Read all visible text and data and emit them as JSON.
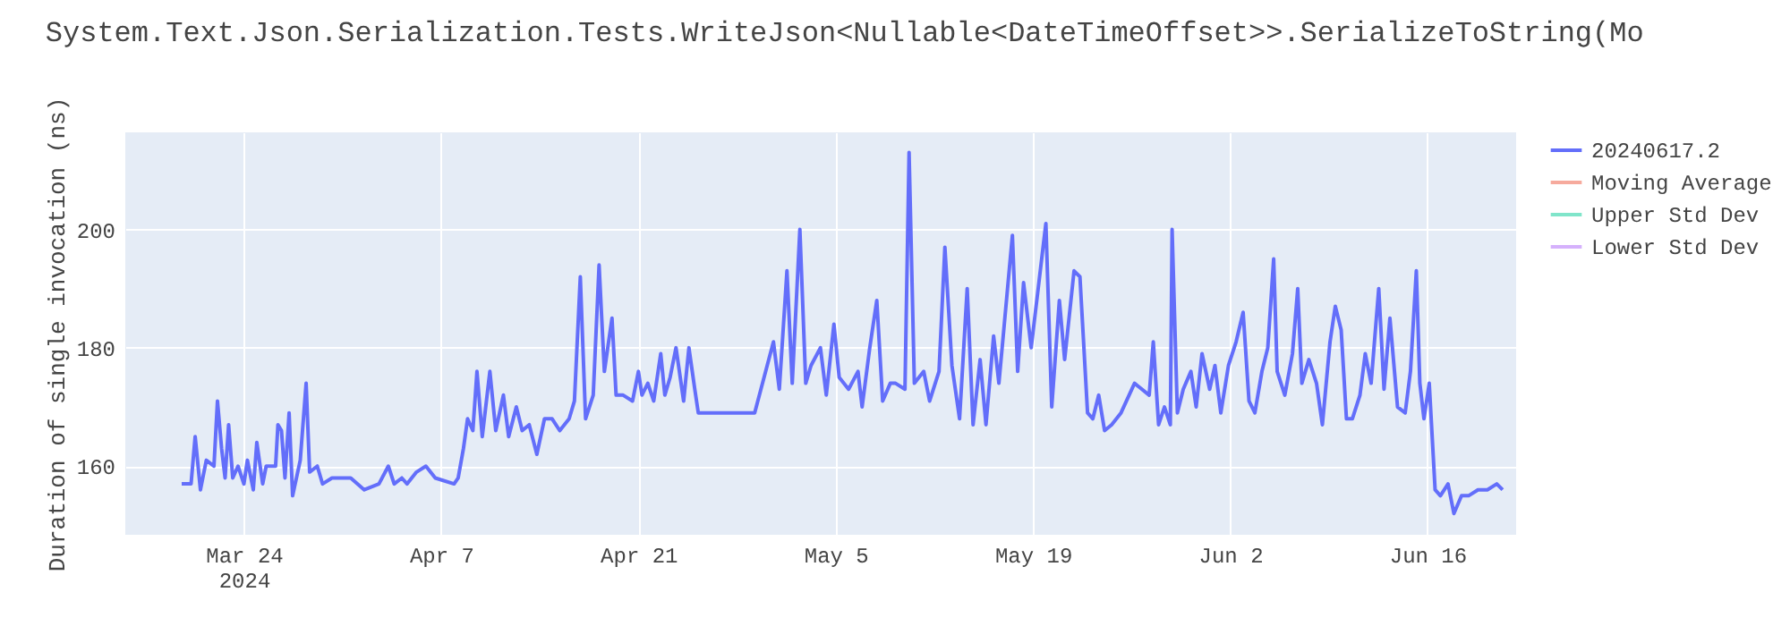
{
  "chart_data": {
    "type": "line",
    "title": "System.Text.Json.Serialization.Tests.WriteJson<Nullable<DateTimeOffset>>.SerializeToString(Mo",
    "ylabel": "Duration of single invocation (ns)",
    "xlim": [
      "2024-03-15T14:00",
      "2024-06-22T07:00"
    ],
    "xticks": [
      {
        "value": "2024-03-24",
        "label": "Mar 24\n2024"
      },
      {
        "value": "2024-04-07",
        "label": "Apr 7"
      },
      {
        "value": "2024-04-21",
        "label": "Apr 21"
      },
      {
        "value": "2024-05-05",
        "label": "May 5"
      },
      {
        "value": "2024-05-19",
        "label": "May 19"
      },
      {
        "value": "2024-06-02",
        "label": "Jun 2"
      },
      {
        "value": "2024-06-16",
        "label": "Jun 16"
      }
    ],
    "ylim": [
      148.4,
      216.4
    ],
    "yticks": [
      160,
      180,
      200
    ],
    "grid": true,
    "legend": "top right",
    "line_style": "solid",
    "series": [
      {
        "name": "20240617.2",
        "color": "#636efa",
        "x": [
          "2024-03-19T14:00",
          "2024-03-20T06:00",
          "2024-03-20T13:00",
          "2024-03-20T22:00",
          "2024-03-21T08:00",
          "2024-03-21T21:00",
          "2024-03-22T03:00",
          "2024-03-22T10:00",
          "2024-03-22T16:00",
          "2024-03-22T22:00",
          "2024-03-23T05:00",
          "2024-03-23T14:00",
          "2024-03-24T00:00",
          "2024-03-24T06:00",
          "2024-03-24T16:00",
          "2024-03-24T22:00",
          "2024-03-25T08:00",
          "2024-03-25T14:00",
          "2024-03-26T06:00",
          "2024-03-26T10:00",
          "2024-03-26T16:00",
          "2024-03-26T22:00",
          "2024-03-27T05:00",
          "2024-03-27T11:00",
          "2024-03-28T00:00",
          "2024-03-28T10:00",
          "2024-03-28T16:00",
          "2024-03-29T05:00",
          "2024-03-29T14:00",
          "2024-03-30T06:00",
          "2024-03-31T14:00",
          "2024-04-01T13:00",
          "2024-04-02T14:00",
          "2024-04-03T06:00",
          "2024-04-03T16:00",
          "2024-04-04T05:00",
          "2024-04-04T14:00",
          "2024-04-05T06:00",
          "2024-04-05T22:00",
          "2024-04-06T14:00",
          "2024-04-07T22:00",
          "2024-04-08T05:00",
          "2024-04-08T14:00",
          "2024-04-08T21:00",
          "2024-04-09T06:00",
          "2024-04-09T13:00",
          "2024-04-09T22:00",
          "2024-04-10T11:00",
          "2024-04-10T21:00",
          "2024-04-11T10:00",
          "2024-04-11T19:00",
          "2024-04-12T08:00",
          "2024-04-12T18:00",
          "2024-04-13T06:00",
          "2024-04-13T19:00",
          "2024-04-14T08:00",
          "2024-04-14T21:00",
          "2024-04-15T10:00",
          "2024-04-16T02:00",
          "2024-04-16T11:00",
          "2024-04-16T21:00",
          "2024-04-17T06:00",
          "2024-04-17T19:00",
          "2024-04-18T05:00",
          "2024-04-18T14:00",
          "2024-04-19T03:00",
          "2024-04-19T10:00",
          "2024-04-19T22:00",
          "2024-04-20T14:00",
          "2024-04-21T00:00",
          "2024-04-21T06:00",
          "2024-04-21T16:00",
          "2024-04-22T02:00",
          "2024-04-22T14:00",
          "2024-04-22T21:00",
          "2024-04-23T06:00",
          "2024-04-23T16:00",
          "2024-04-24T05:00",
          "2024-04-24T14:00",
          "2024-04-25T00:00",
          "2024-04-25T06:00",
          "2024-04-25T13:00",
          "2024-04-29T06:00",
          "2024-04-30T14:00",
          "2024-05-01T00:00",
          "2024-05-01T13:00",
          "2024-05-01T22:00",
          "2024-05-02T11:00",
          "2024-05-02T21:00",
          "2024-05-03T06:00",
          "2024-05-03T22:00",
          "2024-05-04T08:00",
          "2024-05-04T21:00",
          "2024-05-05T06:00",
          "2024-05-05T22:00",
          "2024-05-06T14:00",
          "2024-05-06T21:00",
          "2024-05-07T10:00",
          "2024-05-07T22:00",
          "2024-05-08T08:00",
          "2024-05-08T21:00",
          "2024-05-09T06:00",
          "2024-05-09T22:00",
          "2024-05-10T05:00",
          "2024-05-10T14:00",
          "2024-05-11T06:00",
          "2024-05-11T16:00",
          "2024-05-12T08:00",
          "2024-05-12T18:00",
          "2024-05-13T06:00",
          "2024-05-13T19:00",
          "2024-05-14T08:00",
          "2024-05-14T18:00",
          "2024-05-15T06:00",
          "2024-05-15T16:00",
          "2024-05-16T05:00",
          "2024-05-16T14:00",
          "2024-05-17T13:00",
          "2024-05-17T22:00",
          "2024-05-18T08:00",
          "2024-05-18T21:00",
          "2024-05-19T22:00",
          "2024-05-20T08:00",
          "2024-05-20T21:00",
          "2024-05-21T06:00",
          "2024-05-21T22:00",
          "2024-05-22T08:00",
          "2024-05-22T21:00",
          "2024-05-23T06:00",
          "2024-05-23T16:00",
          "2024-05-24T02:00",
          "2024-05-24T14:00",
          "2024-05-25T06:00",
          "2024-05-26T05:00",
          "2024-05-27T06:00",
          "2024-05-27T13:00",
          "2024-05-27T22:00",
          "2024-05-28T08:00",
          "2024-05-28T18:00",
          "2024-05-28T21:00",
          "2024-05-29T06:00",
          "2024-05-29T16:00",
          "2024-05-30T05:00",
          "2024-05-30T14:00",
          "2024-05-31T00:00",
          "2024-05-31T13:00",
          "2024-05-31T22:00",
          "2024-06-01T08:00",
          "2024-06-01T21:00",
          "2024-06-02T10:00",
          "2024-06-02T22:00",
          "2024-06-03T08:00",
          "2024-06-03T18:00",
          "2024-06-04T06:00",
          "2024-06-04T16:00",
          "2024-06-05T02:00",
          "2024-06-05T08:00",
          "2024-06-05T21:00",
          "2024-06-06T10:00",
          "2024-06-06T19:00",
          "2024-06-07T02:00",
          "2024-06-07T14:00",
          "2024-06-08T03:00",
          "2024-06-08T13:00",
          "2024-06-09T02:00",
          "2024-06-09T11:00",
          "2024-06-09T21:00",
          "2024-06-10T06:00",
          "2024-06-10T16:00",
          "2024-06-11T05:00",
          "2024-06-11T14:00",
          "2024-06-12T00:00",
          "2024-06-12T13:00",
          "2024-06-12T22:00",
          "2024-06-13T08:00",
          "2024-06-13T21:00",
          "2024-06-14T10:00",
          "2024-06-14T19:00",
          "2024-06-15T05:00",
          "2024-06-15T11:00",
          "2024-06-15T18:00",
          "2024-06-16T03:00",
          "2024-06-16T13:00",
          "2024-06-16T22:00",
          "2024-06-17T11:00",
          "2024-06-17T21:00",
          "2024-06-18T10:00",
          "2024-06-18T22:00",
          "2024-06-19T14:00",
          "2024-06-20T06:00",
          "2024-06-20T22:00",
          "2024-06-21T08:00"
        ],
        "values": [
          157,
          157,
          165,
          156,
          161,
          160,
          171,
          163,
          158,
          167,
          158,
          160,
          157,
          161,
          156,
          164,
          157,
          160,
          160,
          167,
          166,
          158,
          169,
          155,
          161,
          174,
          159,
          160,
          157,
          158,
          158,
          156,
          157,
          160,
          157,
          158,
          157,
          159,
          160,
          158,
          157,
          158,
          163,
          168,
          166,
          176,
          165,
          176,
          166,
          172,
          165,
          170,
          166,
          167,
          162,
          168,
          168,
          166,
          168,
          171,
          192,
          168,
          172,
          194,
          176,
          185,
          172,
          172,
          171,
          176,
          172,
          174,
          171,
          179,
          172,
          175,
          180,
          171,
          180,
          173,
          169,
          169,
          169,
          181,
          173,
          193,
          174,
          200,
          174,
          177,
          180,
          172,
          184,
          175,
          173,
          176,
          170,
          180,
          188,
          171,
          174,
          174,
          173,
          213,
          174,
          176,
          171,
          176,
          197,
          177,
          168,
          190,
          167,
          178,
          167,
          182,
          174,
          199,
          176,
          191,
          180,
          201,
          170,
          188,
          178,
          193,
          192,
          169,
          168,
          172,
          166,
          167,
          169,
          174,
          172,
          181,
          167,
          170,
          167,
          200,
          169,
          173,
          176,
          170,
          179,
          173,
          177,
          169,
          177,
          181,
          186,
          171,
          169,
          176,
          180,
          195,
          176,
          172,
          179,
          190,
          174,
          178,
          174,
          167,
          181,
          187,
          183,
          168,
          168,
          172,
          179,
          174,
          190,
          173,
          185,
          170,
          169,
          176,
          193,
          174,
          168,
          174,
          156,
          155,
          157,
          152,
          155,
          155,
          156,
          156,
          157,
          156
        ]
      },
      {
        "name": "Moving Average",
        "color": "#f6aa9d"
      },
      {
        "name": "Upper Std Dev",
        "color": "#80e5ca"
      },
      {
        "name": "Lower Std Dev",
        "color": "#d5b1fc"
      }
    ]
  }
}
